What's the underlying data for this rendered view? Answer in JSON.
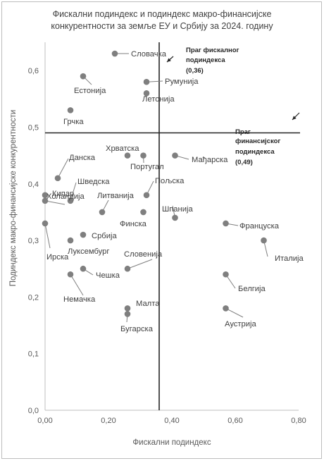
{
  "chart_data": {
    "type": "scatter",
    "title_lines": [
      "Фискални подиндекс и подиндекс макро-финансијске",
      "конкурентности за земље ЕУ и Србију за  2024. годину"
    ],
    "xlabel": "Фискални подиндекс",
    "ylabel": "Подиндекс макро-финансијске конкурентности",
    "xlim": [
      0,
      0.8
    ],
    "ylim": [
      0,
      0.65
    ],
    "x_ticks": [
      "0,00",
      "0,20",
      "0,40",
      "0,60",
      "0,80"
    ],
    "y_ticks": [
      "0,0",
      "0,1",
      "0,2",
      "0,3",
      "0,4",
      "0,5",
      "0,6"
    ],
    "grid": false,
    "points": [
      {
        "label": "Словачка",
        "x": 0.22,
        "y": 0.63
      },
      {
        "label": "Естонија",
        "x": 0.12,
        "y": 0.59
      },
      {
        "label": "Румунија",
        "x": 0.32,
        "y": 0.58
      },
      {
        "label": "Летонија",
        "x": 0.32,
        "y": 0.56
      },
      {
        "label": "Грчка",
        "x": 0.08,
        "y": 0.53
      },
      {
        "label": "Хрватска",
        "x": 0.26,
        "y": 0.45
      },
      {
        "label": "Португал",
        "x": 0.31,
        "y": 0.45
      },
      {
        "label": "Мађарска",
        "x": 0.41,
        "y": 0.45
      },
      {
        "label": "Данска",
        "x": 0.04,
        "y": 0.41
      },
      {
        "label": "Пољска",
        "x": 0.32,
        "y": 0.38
      },
      {
        "label": "Кипар",
        "x": 0.0,
        "y": 0.38
      },
      {
        "label": "Шведска",
        "x": 0.08,
        "y": 0.37
      },
      {
        "label": "Холандија",
        "x": 0.0,
        "y": 0.37
      },
      {
        "label": "Литванија",
        "x": 0.18,
        "y": 0.35
      },
      {
        "label": "Шпанија",
        "x": 0.41,
        "y": 0.34
      },
      {
        "label": "Финска",
        "x": 0.31,
        "y": 0.35
      },
      {
        "label": "Француска",
        "x": 0.57,
        "y": 0.33
      },
      {
        "label": "Ирска",
        "x": 0.0,
        "y": 0.33
      },
      {
        "label": "Србија",
        "x": 0.12,
        "y": 0.31
      },
      {
        "label": "Луксембург",
        "x": 0.08,
        "y": 0.3
      },
      {
        "label": "Италија",
        "x": 0.69,
        "y": 0.3
      },
      {
        "label": "Словенија",
        "x": 0.26,
        "y": 0.25
      },
      {
        "label": "Чешка",
        "x": 0.12,
        "y": 0.25
      },
      {
        "label": "Немачка",
        "x": 0.08,
        "y": 0.24
      },
      {
        "label": "Белгија",
        "x": 0.57,
        "y": 0.24
      },
      {
        "label": "Малта",
        "x": 0.26,
        "y": 0.18
      },
      {
        "label": "Аустрија",
        "x": 0.57,
        "y": 0.18
      },
      {
        "label": "Бугарска",
        "x": 0.26,
        "y": 0.17
      }
    ],
    "thresholds": {
      "fiscal": {
        "x": 0.36,
        "label_lines": [
          "Праг фискалног",
          "подиндекса",
          "(0,36)"
        ]
      },
      "macro": {
        "y": 0.49,
        "label_lines": [
          "Праг",
          "финансијског",
          "подиндекса",
          "(0,49)"
        ]
      }
    },
    "colors": {
      "point": "#7f7f7f",
      "threshold": "#262626",
      "axis": "#bfbfbf",
      "leader": "#7f7f7f"
    }
  }
}
